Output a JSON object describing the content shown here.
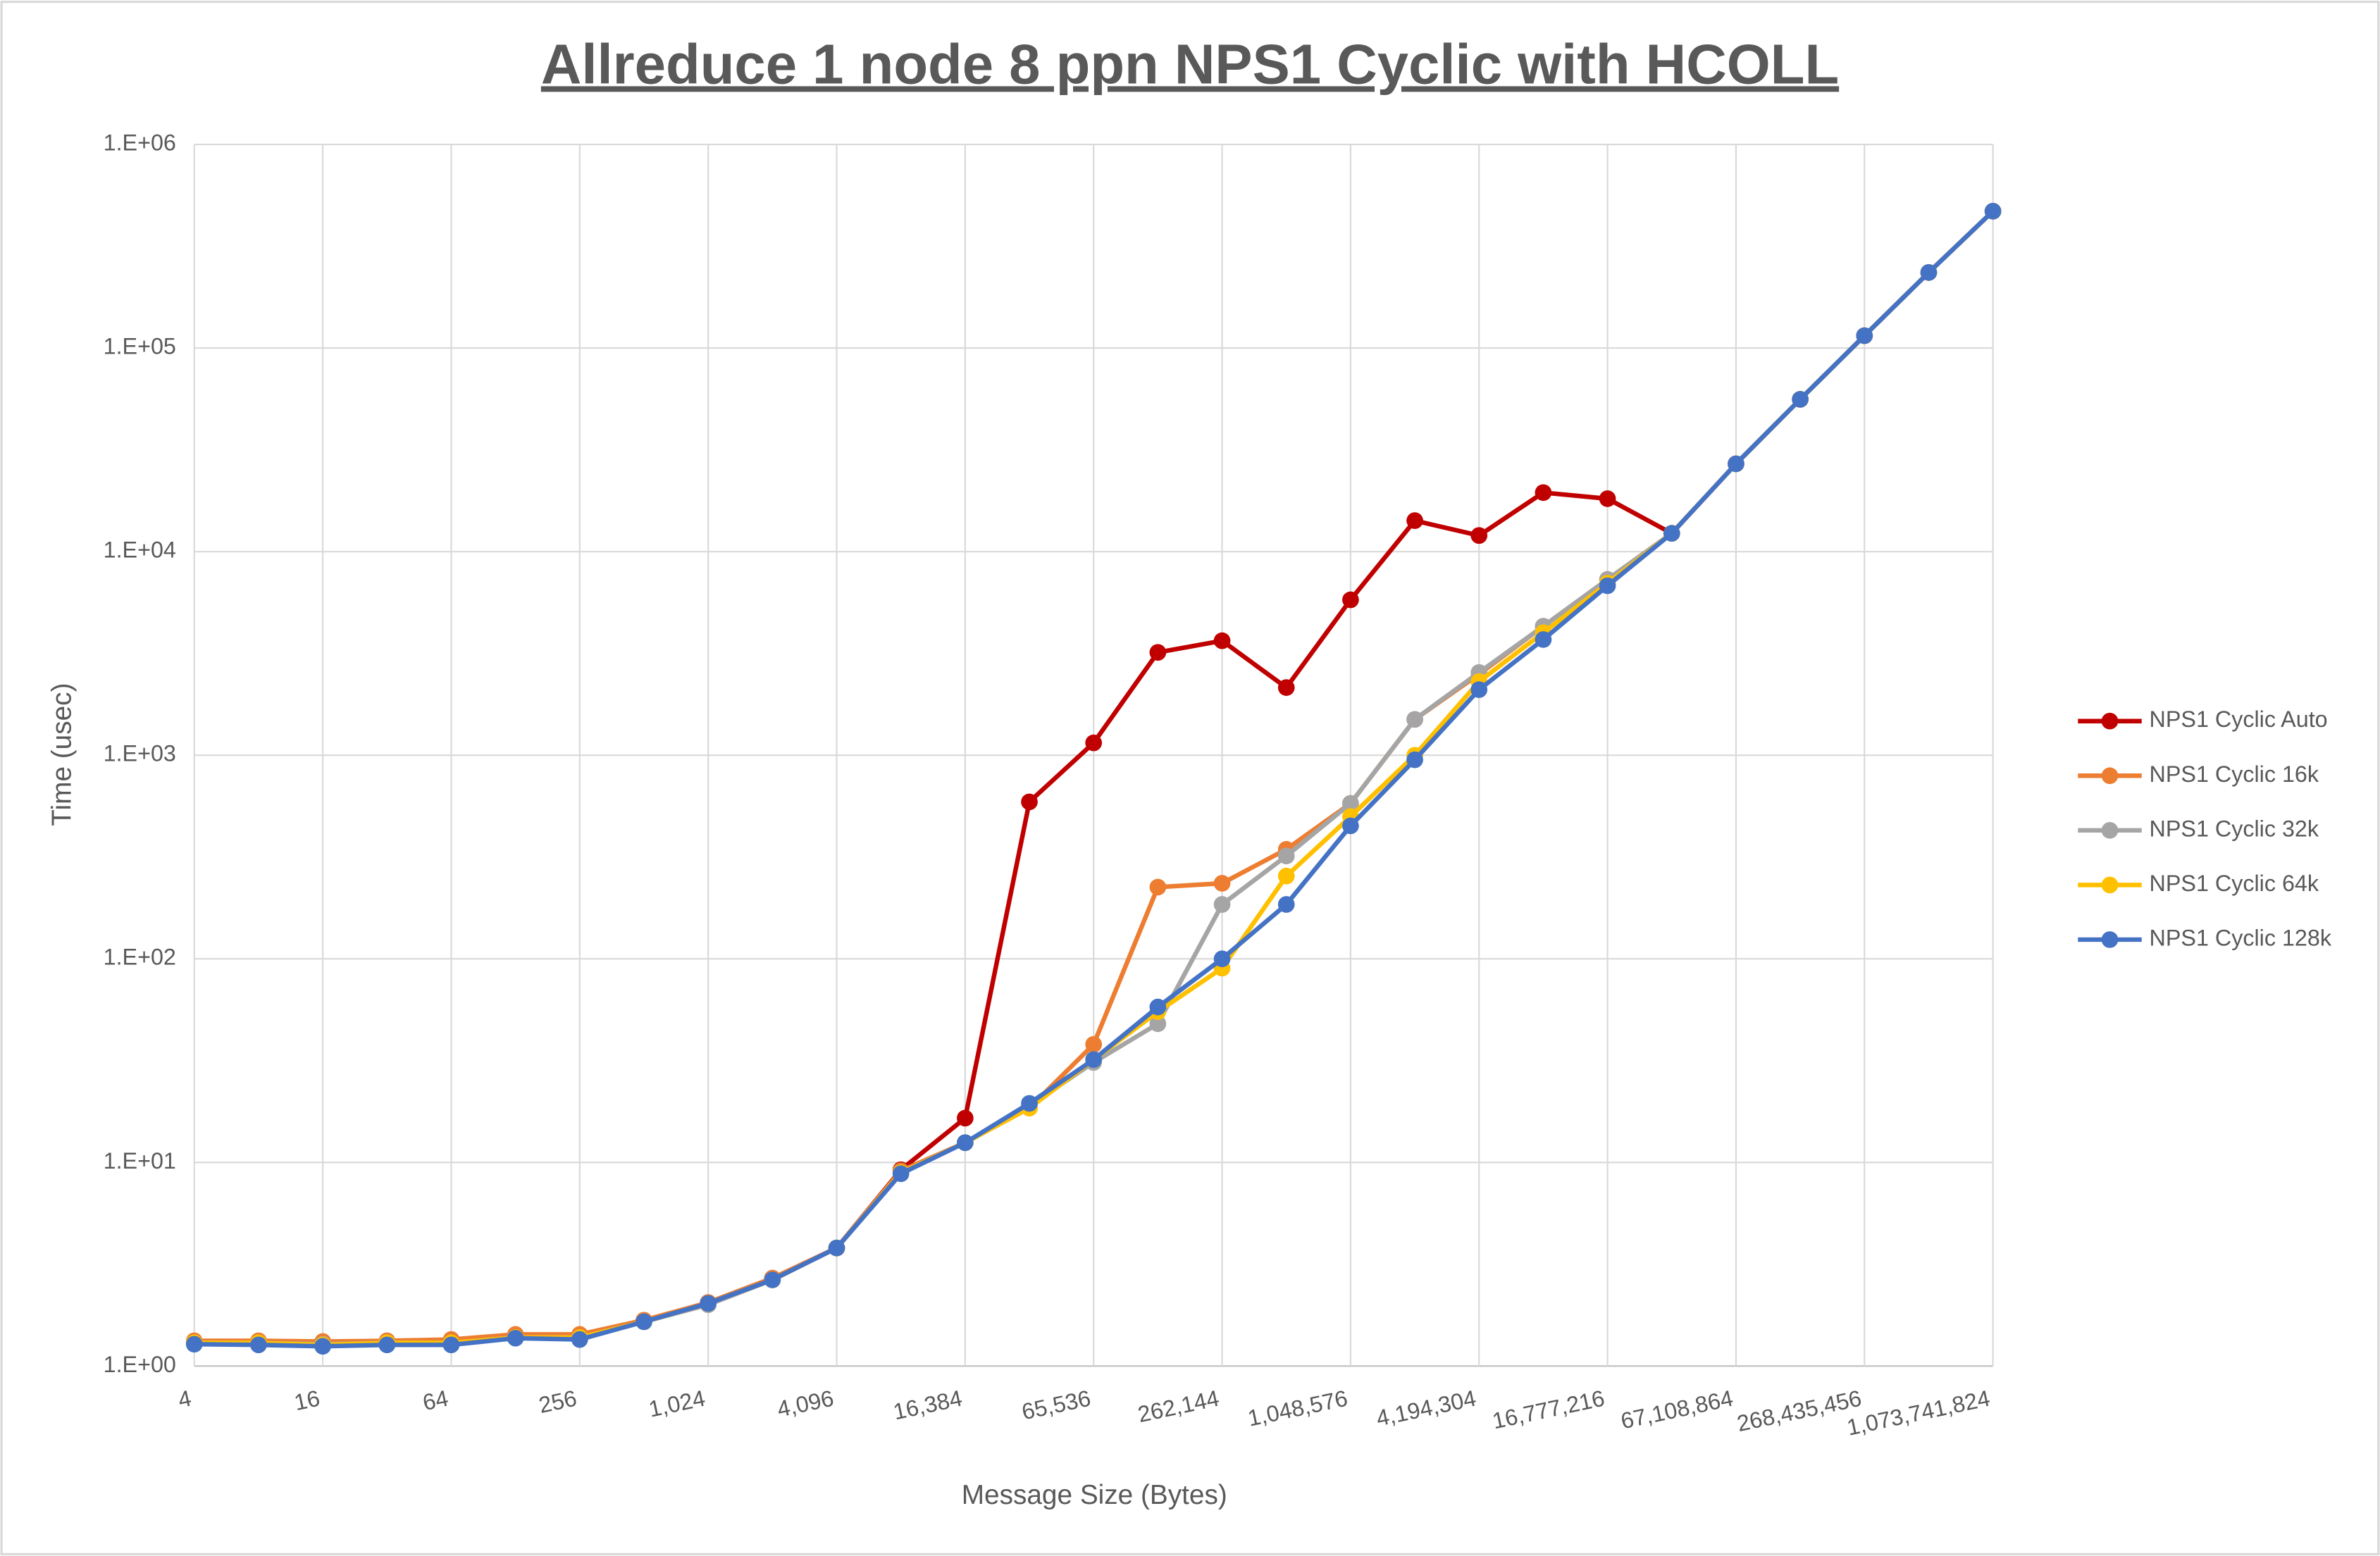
{
  "chart_data": {
    "type": "line",
    "title": "Allreduce 1 node 8 ppn NPS1 Cyclic with HCOLL",
    "x_label": "Message Size (Bytes)",
    "y_label": "Time (usec)",
    "x": [
      4,
      8,
      16,
      32,
      64,
      128,
      256,
      512,
      1024,
      2048,
      4096,
      8192,
      16384,
      32768,
      65536,
      131072,
      262144,
      524288,
      1048576,
      2097152,
      4194304,
      8388608,
      16777216,
      33554432,
      67108864,
      134217728,
      268435456,
      536870912,
      1073741824
    ],
    "xlim": [
      4,
      1073741824
    ],
    "xticks": [
      4,
      16,
      64,
      256,
      {
        "value": 1024,
        "label": "1,024"
      },
      {
        "value": 4096,
        "label": "4,096"
      },
      {
        "value": 16384,
        "label": "16,384"
      },
      {
        "value": 65536,
        "label": "65,536"
      },
      {
        "value": 262144,
        "label": "262,144"
      },
      {
        "value": 1048576,
        "label": "1,048,576"
      },
      {
        "value": 4194304,
        "label": "4,194,304"
      },
      {
        "value": 16777216,
        "label": "16,777,216"
      },
      {
        "value": 67108864,
        "label": "67,108,864"
      },
      {
        "value": 268435456,
        "label": "268,435,456"
      },
      {
        "value": 1073741824,
        "label": "1,073,741,824"
      }
    ],
    "x_scale": "log",
    "y_scale": "log",
    "ylim": [
      1,
      1000000
    ],
    "yticks": [
      {
        "value": 1,
        "label": "1.E+00"
      },
      {
        "value": 10,
        "label": "1.E+01"
      },
      {
        "value": 100,
        "label": "1.E+02"
      },
      {
        "value": 1000,
        "label": "1.E+03"
      },
      {
        "value": 10000,
        "label": "1.E+04"
      },
      {
        "value": 100000,
        "label": "1.E+05"
      },
      {
        "value": 1000000,
        "label": "1.E+06"
      }
    ],
    "grid": true,
    "legend": "right",
    "series": [
      {
        "name": "NPS1 Cyclic Auto",
        "color": "#c00000",
        "values": [
          1.3,
          1.3,
          1.28,
          1.3,
          1.3,
          1.4,
          1.4,
          1.67,
          2.05,
          2.7,
          3.8,
          9.2,
          16.5,
          590,
          1150,
          3200,
          3650,
          2150,
          5800,
          14200,
          12000,
          19500,
          18200,
          12300,
          27000,
          56000,
          115000,
          235000,
          470000
        ]
      },
      {
        "name": "NPS1 Cyclic 16k",
        "color": "#ed7d31",
        "values": [
          1.33,
          1.33,
          1.32,
          1.33,
          1.35,
          1.43,
          1.43,
          1.68,
          2.05,
          2.7,
          3.8,
          9.1,
          12.5,
          18.5,
          38,
          225,
          235,
          345,
          580,
          1500,
          2500,
          4300,
          7300,
          12300,
          27000,
          56000,
          115000,
          235000,
          470000
        ]
      },
      {
        "name": "NPS1 Cyclic 32k",
        "color": "#a5a5a5",
        "values": [
          1.3,
          1.3,
          1.28,
          1.3,
          1.3,
          1.38,
          1.38,
          1.65,
          2.0,
          2.65,
          3.8,
          8.9,
          12.5,
          19,
          31,
          48,
          185,
          320,
          580,
          1500,
          2550,
          4300,
          7300,
          12300,
          27000,
          56000,
          115000,
          235000,
          470000
        ]
      },
      {
        "name": "NPS1 Cyclic 64k",
        "color": "#ffc000",
        "values": [
          1.3,
          1.3,
          1.27,
          1.3,
          1.3,
          1.38,
          1.38,
          1.65,
          2.03,
          2.65,
          3.8,
          8.9,
          12.5,
          18.5,
          32,
          55,
          90,
          255,
          500,
          1000,
          2300,
          4000,
          7000,
          12300,
          27000,
          56000,
          115000,
          235000,
          470000
        ]
      },
      {
        "name": "NPS1 Cyclic 128k",
        "color": "#4472c4",
        "values": [
          1.28,
          1.27,
          1.25,
          1.27,
          1.27,
          1.37,
          1.35,
          1.65,
          2.03,
          2.65,
          3.8,
          8.8,
          12.5,
          19.5,
          32,
          58,
          100,
          185,
          450,
          950,
          2100,
          3700,
          6800,
          12300,
          27000,
          56000,
          115000,
          235000,
          470000
        ]
      }
    ]
  }
}
